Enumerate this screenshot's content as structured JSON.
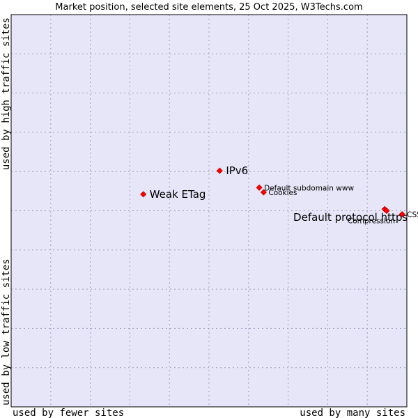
{
  "chart_data": {
    "type": "scatter",
    "title": "Market position, selected site elements, 25 Oct 2025, W3Techs.com",
    "xlabel_left": "used by fewer sites",
    "xlabel_right": "used by many sites",
    "ylabel_top": "used by high traffic sites",
    "ylabel_bottom": "used by low traffic sites",
    "xlim": [
      0,
      100
    ],
    "ylim": [
      0,
      100
    ],
    "grid": true,
    "colors": {
      "plot_background": "#e6e6f8",
      "grid": "#a0a0c0",
      "border": "#000000",
      "marker": "#ff0000",
      "marker_outline": "#c00000"
    },
    "points": [
      {
        "label": "Weak ETag",
        "x": 33.4,
        "y": 54.2,
        "label_size": "large"
      },
      {
        "label": "IPv6",
        "x": 52.7,
        "y": 60.2,
        "label_size": "large"
      },
      {
        "label": "Default subdomain www",
        "x": 62.7,
        "y": 55.9,
        "label_size": "small"
      },
      {
        "label": "Cookies",
        "x": 63.8,
        "y": 54.7,
        "label_size": "small"
      },
      {
        "label": "Default protocol https",
        "x": 94.4,
        "y": 50.4,
        "label_size": "large"
      },
      {
        "label": "Compression",
        "x": 94.9,
        "y": 50.0,
        "label_size": "small"
      },
      {
        "label": "CSS",
        "x": 98.8,
        "y": 49.1,
        "label_size": "small"
      }
    ]
  }
}
